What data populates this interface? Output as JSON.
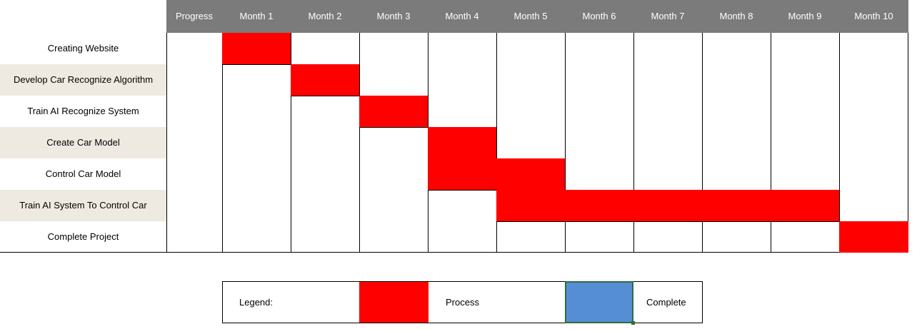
{
  "columns": [
    "Progress",
    "Month 1",
    "Month 2",
    "Month 3",
    "Month 4",
    "Month 5",
    "Month 6",
    "Month 7",
    "Month 8",
    "Month 9",
    "Month 10"
  ],
  "tasks": [
    {
      "name": "Creating Website",
      "months": [
        1
      ]
    },
    {
      "name": "Develop Car Recognize Algorithm",
      "months": [
        2
      ]
    },
    {
      "name": "Train AI Recognize System",
      "months": [
        3
      ]
    },
    {
      "name": "Create Car Model",
      "months": [
        4
      ]
    },
    {
      "name": "Control Car Model",
      "months": [
        4,
        5
      ]
    },
    {
      "name": "Train AI System To Control Car",
      "months": [
        5,
        6,
        7,
        8,
        9
      ]
    },
    {
      "name": "Complete Project",
      "months": [
        10
      ]
    }
  ],
  "legend": {
    "title": "Legend:",
    "process_label": "Process",
    "complete_label": "Complete",
    "process_color": "#ff0000",
    "complete_color": "#558ed5"
  },
  "colors": {
    "header_bg": "#7b7b7b",
    "row_shade": "#eeeae1",
    "bar": "#ff0000"
  }
}
